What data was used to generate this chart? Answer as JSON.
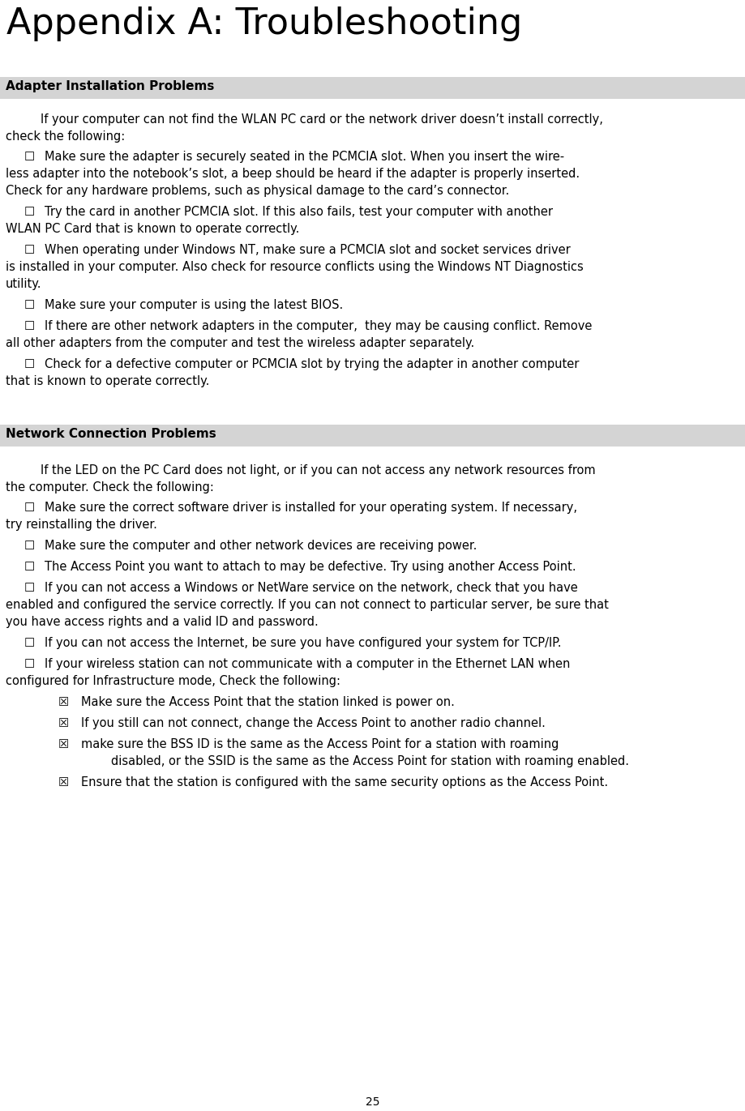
{
  "title": "Appendix A: Troubleshooting",
  "page_number": "25",
  "background_color": "#ffffff",
  "section1_header": "Adapter Installation Problems",
  "section1_header_bg": "#d4d4d4",
  "section1_header_color": "#000000",
  "section2_header": "Network Connection Problems",
  "section2_header_bg": "#d4d4d4",
  "section2_header_color": "#000000",
  "section1_intro_line1": "If your computer can not find the WLAN PC card or the network driver doesn’t install correctly,",
  "section1_intro_line2": "check the following:",
  "section1_bullets": [
    [
      "Make sure the adapter is securely seated in the PCMCIA slot. When you insert the wire-",
      "less adapter into the notebook’s slot, a beep should be heard if the adapter is properly inserted.",
      "Check for any hardware problems, such as physical damage to the card’s connector."
    ],
    [
      "Try the card in another PCMCIA slot. If this also fails, test your computer with another",
      "WLAN PC Card that is known to operate correctly."
    ],
    [
      "When operating under Windows NT, make sure a PCMCIA slot and socket services driver",
      "is installed in your computer. Also check for resource conflicts using the Windows NT Diagnostics",
      "utility."
    ],
    [
      "Make sure your computer is using the latest BIOS."
    ],
    [
      "If there are other network adapters in the computer,  they may be causing conflict. Remove",
      "all other adapters from the computer and test the wireless adapter separately."
    ],
    [
      "Check for a defective computer or PCMCIA slot by trying the adapter in another computer",
      "that is known to operate correctly."
    ]
  ],
  "section2_intro_line1": "If the LED on the PC Card does not light, or if you can not access any network resources from",
  "section2_intro_line2": "the computer. Check the following:",
  "section2_bullets": [
    [
      "Make sure the correct software driver is installed for your operating system. If necessary,",
      "try reinstalling the driver."
    ],
    [
      "Make sure the computer and other network devices are receiving power."
    ],
    [
      "The Access Point you want to attach to may be defective. Try using another Access Point."
    ],
    [
      "If you can not access a Windows or NetWare service on the network, check that you have",
      "enabled and configured the service correctly. If you can not connect to particular server, be sure that",
      "you have access rights and a valid ID and password."
    ],
    [
      "If you can not access the Internet, be sure you have configured your system for TCP/IP."
    ],
    [
      "If your wireless station can not communicate with a computer in the Ethernet LAN when",
      "configured for Infrastructure mode, Check the following:"
    ]
  ],
  "section2_subbullets": [
    [
      "Make sure the Access Point that the station linked is power on."
    ],
    [
      "If you still can not connect, change the Access Point to another radio channel."
    ],
    [
      "make sure the BSS ID is the same as the Access Point for a station with roaming",
      "        disabled, or the SSID is the same as the Access Point for station with roaming enabled."
    ],
    [
      "Ensure that the station is configured with the same security options as the Access Point."
    ]
  ],
  "title_fontsize": 32,
  "header_fontsize": 11,
  "body_fontsize": 10.5
}
